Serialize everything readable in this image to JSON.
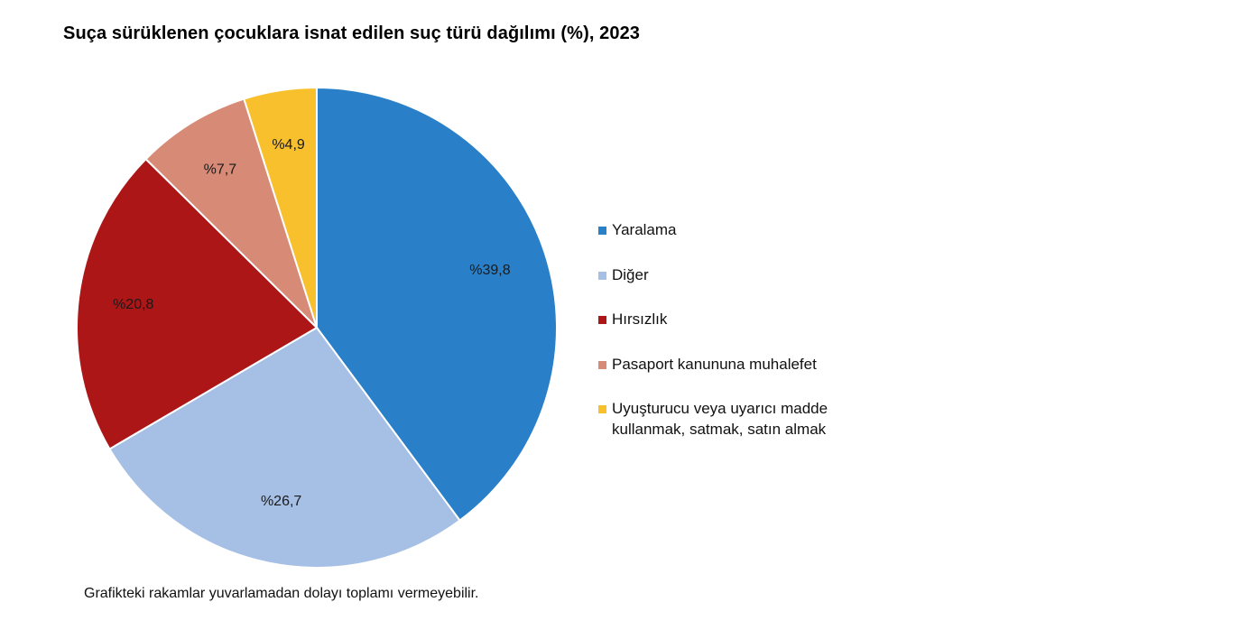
{
  "title": "Suça sürüklenen çocuklara isnat edilen suç türü dağılımı (%), 2023",
  "footnote": "Grafikteki rakamlar yuvarlamadan dolayı toplamı vermeyebilir.",
  "chart_data": {
    "type": "pie",
    "title": "Suça sürüklenen çocuklara isnat edilen suç türü dağılımı (%), 2023",
    "slices": [
      {
        "name": "Yaralama",
        "value": 39.8,
        "label": "%39,8",
        "color": "#2980c8"
      },
      {
        "name": "Diğer",
        "value": 26.7,
        "label": "%26,7",
        "color": "#a6bfe4"
      },
      {
        "name": "Hırsızlık",
        "value": 20.8,
        "label": "%20,8",
        "color": "#ad1617"
      },
      {
        "name": "Pasaport kanununa muhalefet",
        "value": 7.7,
        "label": "%7,7",
        "color": "#d78b76"
      },
      {
        "name": "Uyuşturucu veya uyarıcı madde\nkullanmak, satmak, satın almak",
        "value": 4.9,
        "label": "%4,9",
        "color": "#f8c02d"
      }
    ],
    "legend_position": "right"
  }
}
